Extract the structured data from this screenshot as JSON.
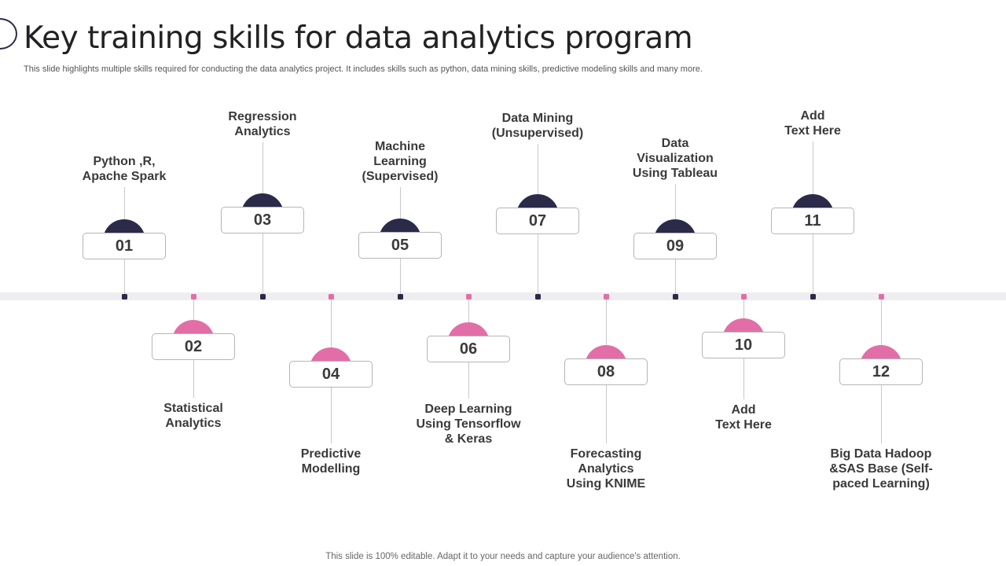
{
  "title": "Key training skills  for data analytics program",
  "subtitle": "This slide highlights multiple skills required for conducting the data analytics project. It includes skills such as python, data mining skills, predictive modeling skills and many more.",
  "footer": "This slide is 100% editable. Adapt it to your needs and capture your audience's attention.",
  "colors": {
    "dark": "#2b2a48",
    "pink": "#e26ea8",
    "axis": "#eeedf0"
  },
  "steps": [
    {
      "number": "01",
      "label": "Python ,R,\nApache Spark"
    },
    {
      "number": "02",
      "label": "Statistical\nAnalytics"
    },
    {
      "number": "03",
      "label": "Regression\nAnalytics"
    },
    {
      "number": "04",
      "label": "Predictive\nModelling"
    },
    {
      "number": "05",
      "label": "Machine\nLearning\n(Supervised)"
    },
    {
      "number": "06",
      "label": "Deep Learning\nUsing Tensorflow\n& Keras"
    },
    {
      "number": "07",
      "label": "Data Mining\n(Unsupervised)"
    },
    {
      "number": "08",
      "label": "Forecasting\nAnalytics\nUsing KNIME"
    },
    {
      "number": "09",
      "label": "Data\nVisualization\nUsing Tableau"
    },
    {
      "number": "10",
      "label": "Add\nText Here"
    },
    {
      "number": "11",
      "label": "Add\nText Here"
    },
    {
      "number": "12",
      "label": "Big Data Hadoop\n&SAS Base (Self-\npaced Learning)"
    }
  ]
}
